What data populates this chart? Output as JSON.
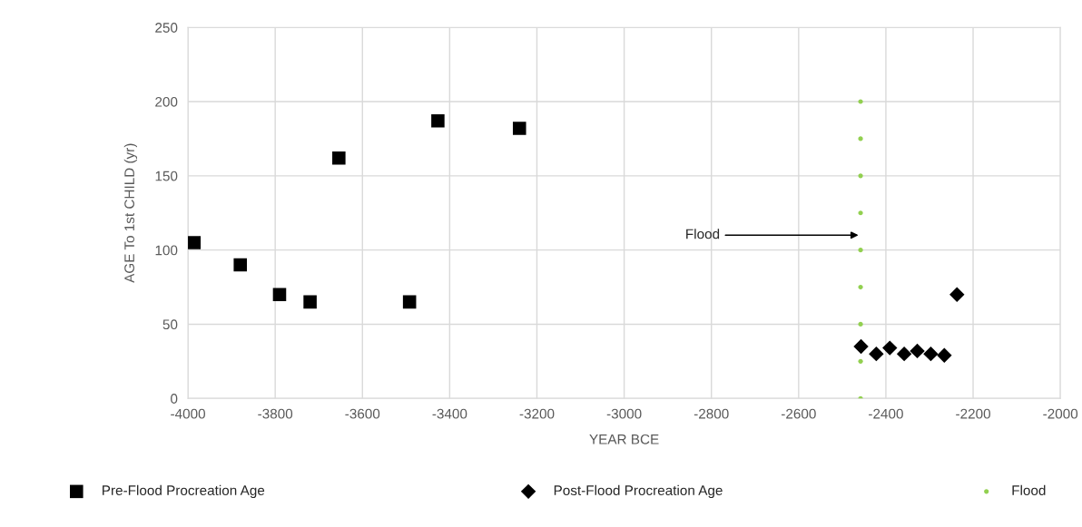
{
  "chart_data": {
    "type": "scatter",
    "xlabel": "YEAR BCE",
    "ylabel": "AGE To 1st CHILD (yr)",
    "xlim": [
      -4000,
      -2000
    ],
    "xticks": [
      -4000,
      -3800,
      -3600,
      -3400,
      -3200,
      -3000,
      -2800,
      -2600,
      -2400,
      -2200,
      -2000
    ],
    "ylim": [
      0,
      250
    ],
    "yticks": [
      0,
      50,
      100,
      150,
      200,
      250
    ],
    "grid": true,
    "legend": "bottom",
    "series": [
      {
        "name": "Pre-Flood Procreation Age",
        "color": "#000000",
        "marker": "square",
        "x": [
          -3986,
          -3880,
          -3790,
          -3720,
          -3654,
          -3492,
          -3427,
          -3240
        ],
        "values": [
          105,
          90,
          70,
          65,
          162,
          65,
          187,
          182
        ]
      },
      {
        "name": "Post-Flood Procreation Age",
        "color": "#000000",
        "marker": "diamond",
        "x": [
          -2457,
          -2422,
          -2391,
          -2358,
          -2328,
          -2297,
          -2266,
          -2237
        ],
        "values": [
          35,
          30,
          34,
          30,
          32,
          30,
          29,
          70
        ]
      },
      {
        "name": "Flood",
        "color": "#92d050",
        "marker": "circle",
        "x": [
          -2458,
          -2458,
          -2458,
          -2458,
          -2458,
          -2458,
          -2458,
          -2458,
          -2458
        ],
        "values": [
          0,
          25,
          50,
          75,
          100,
          125,
          150,
          175,
          200
        ]
      }
    ],
    "annotations": [
      "Flood"
    ]
  }
}
